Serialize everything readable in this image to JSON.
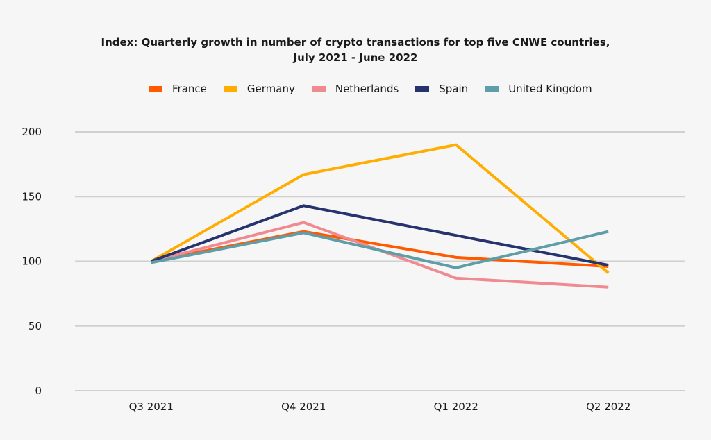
{
  "chart_data": {
    "type": "line",
    "title_line1": "Index: Quarterly growth in number of crypto transactions for top five CNWE countries,",
    "title_line2": "July 2021 - June 2022",
    "categories": [
      "Q3 2021",
      "Q4 2021",
      "Q1 2022",
      "Q2 2022"
    ],
    "ylim": [
      0,
      200
    ],
    "yticks": [
      "0",
      "50",
      "100",
      "150",
      "200"
    ],
    "grid": true,
    "legend_position": "top",
    "series": [
      {
        "name": "France",
        "color": "#ff5a00",
        "values": [
          100,
          123,
          103,
          96
        ]
      },
      {
        "name": "Germany",
        "color": "#ffad00",
        "values": [
          100,
          167,
          190,
          91
        ]
      },
      {
        "name": "Netherlands",
        "color": "#f08a91",
        "values": [
          100,
          130,
          87,
          80
        ]
      },
      {
        "name": "Spain",
        "color": "#27336e",
        "values": [
          100,
          143,
          120,
          97
        ]
      },
      {
        "name": "United Kingdom",
        "color": "#5e9ea8",
        "values": [
          99,
          122,
          95,
          123
        ]
      }
    ]
  }
}
